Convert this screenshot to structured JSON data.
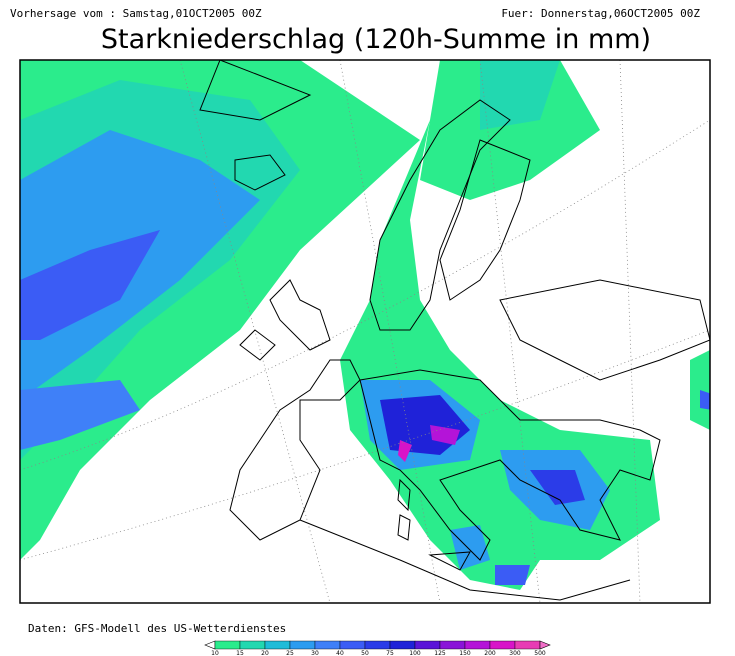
{
  "header": {
    "left": "Vorhersage vom : Samstag,01OCT2005 00Z",
    "right": "Fuer: Donnerstag,06OCT2005 00Z",
    "title": "Starkniederschlag (120h-Summe in mm)"
  },
  "footer": {
    "source": "Daten: GFS-Modell des US-Wetterdienstes"
  },
  "legend": {
    "items": [
      {
        "label": 10,
        "color": "#2bec8c"
      },
      {
        "label": 15,
        "color": "#22d8b0"
      },
      {
        "label": 20,
        "color": "#1fbcd8"
      },
      {
        "label": 25,
        "color": "#2d9cf0"
      },
      {
        "label": 30,
        "color": "#3f80f8"
      },
      {
        "label": 40,
        "color": "#3b5cf5"
      },
      {
        "label": 50,
        "color": "#2b3ce8"
      },
      {
        "label": 75,
        "color": "#1f22d8"
      },
      {
        "label": 100,
        "color": "#5a14d8"
      },
      {
        "label": 125,
        "color": "#8a14d8"
      },
      {
        "label": 150,
        "color": "#b414d8"
      },
      {
        "label": 200,
        "color": "#d814c8"
      },
      {
        "label": 300,
        "color": "#e83cb4"
      },
      {
        "label": 500,
        "color": "#f06ec8"
      }
    ]
  }
}
